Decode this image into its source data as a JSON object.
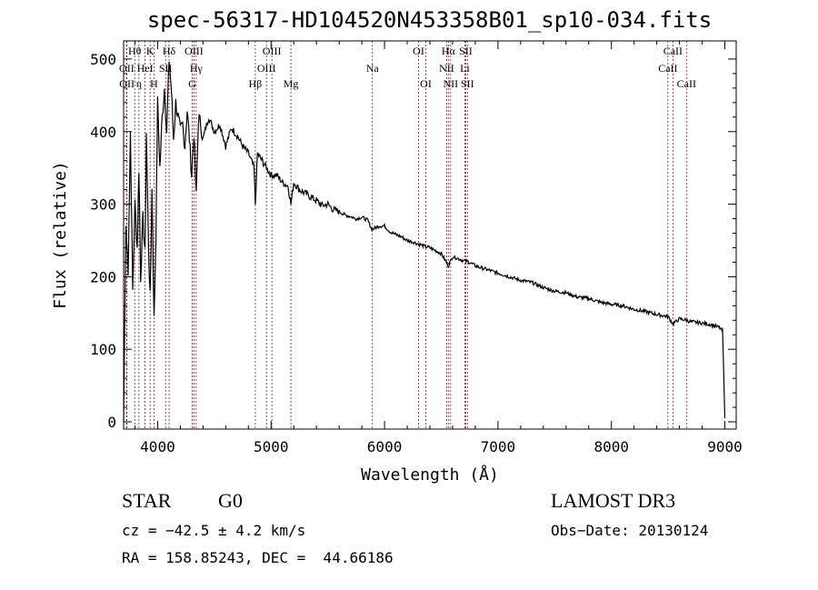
{
  "chart_data": {
    "type": "line",
    "title": "spec-56317-HD104520N453358B01_sp10-034.fits",
    "xlabel": "Wavelength (Å)",
    "ylabel": "Flux (relative)",
    "xlim": [
      3700,
      9100
    ],
    "ylim": [
      -10,
      525
    ],
    "xticks": [
      4000,
      5000,
      6000,
      7000,
      8000,
      9000
    ],
    "yticks": [
      0,
      100,
      200,
      300,
      400,
      500
    ],
    "series": [
      {
        "name": "flux",
        "x": [
          3700,
          3720,
          3740,
          3760,
          3780,
          3800,
          3820,
          3835,
          3850,
          3870,
          3889,
          3900,
          3920,
          3934,
          3950,
          3968,
          3985,
          4000,
          4020,
          4040,
          4060,
          4080,
          4101,
          4120,
          4140,
          4160,
          4180,
          4200,
          4220,
          4240,
          4260,
          4280,
          4300,
          4320,
          4340,
          4360,
          4380,
          4400,
          4450,
          4500,
          4550,
          4600,
          4650,
          4700,
          4750,
          4800,
          4850,
          4861,
          4880,
          4920,
          4960,
          5000,
          5050,
          5100,
          5150,
          5175,
          5200,
          5250,
          5300,
          5350,
          5400,
          5450,
          5500,
          5550,
          5600,
          5650,
          5700,
          5750,
          5800,
          5850,
          5890,
          5950,
          6000,
          6050,
          6100,
          6150,
          6200,
          6250,
          6300,
          6350,
          6400,
          6450,
          6500,
          6563,
          6600,
          6650,
          6700,
          6750,
          6800,
          6900,
          7000,
          7100,
          7200,
          7300,
          7400,
          7500,
          7600,
          7700,
          7800,
          7900,
          8000,
          8100,
          8200,
          8300,
          8400,
          8500,
          8542,
          8600,
          8662,
          8700,
          8800,
          8850,
          8900,
          8950,
          8980,
          9000
        ],
        "values": [
          0,
          270,
          210,
          400,
          180,
          300,
          240,
          350,
          200,
          280,
          230,
          400,
          240,
          170,
          320,
          140,
          260,
          440,
          350,
          420,
          460,
          400,
          500,
          460,
          390,
          440,
          420,
          400,
          410,
          380,
          430,
          390,
          340,
          400,
          310,
          420,
          410,
          390,
          420,
          400,
          410,
          380,
          405,
          395,
          380,
          370,
          350,
          300,
          370,
          360,
          350,
          340,
          340,
          330,
          325,
          300,
          330,
          320,
          315,
          310,
          305,
          298,
          300,
          292,
          290,
          285,
          283,
          280,
          282,
          278,
          265,
          270,
          270,
          262,
          258,
          255,
          250,
          248,
          245,
          242,
          240,
          236,
          232,
          215,
          228,
          225,
          222,
          220,
          215,
          210,
          205,
          200,
          195,
          192,
          185,
          180,
          178,
          172,
          170,
          165,
          162,
          160,
          155,
          152,
          148,
          145,
          135,
          142,
          140,
          138,
          136,
          135,
          133,
          130,
          125,
          5
        ]
      }
    ],
    "lines": [
      {
        "label": "Hθ",
        "x": 3798,
        "row": 0
      },
      {
        "label": "OII",
        "x": 3727,
        "row": 1
      },
      {
        "label": "OII",
        "x": 3729,
        "row": 2
      },
      {
        "label": "η",
        "x": 3835,
        "row": 2
      },
      {
        "label": "HeI",
        "x": 3889,
        "row": 1
      },
      {
        "label": "K",
        "x": 3934,
        "row": 0
      },
      {
        "label": "H",
        "x": 3968,
        "row": 2
      },
      {
        "label": "SII",
        "x": 4070,
        "row": 1
      },
      {
        "label": "Hδ",
        "x": 4101,
        "row": 0
      },
      {
        "label": "OIII",
        "x": 4320,
        "row": 0
      },
      {
        "label": "Hγ",
        "x": 4340,
        "row": 1
      },
      {
        "label": "G",
        "x": 4305,
        "row": 2
      },
      {
        "label": "Hβ",
        "x": 4861,
        "row": 2
      },
      {
        "label": "OIII",
        "x": 5007,
        "row": 0
      },
      {
        "label": "OIII",
        "x": 4959,
        "row": 1
      },
      {
        "label": "Mg",
        "x": 5175,
        "row": 2
      },
      {
        "label": "Na",
        "x": 5893,
        "row": 1
      },
      {
        "label": "OI",
        "x": 6300,
        "row": 0
      },
      {
        "label": "OI",
        "x": 6364,
        "row": 2
      },
      {
        "label": "Hα",
        "x": 6563,
        "row": 0
      },
      {
        "label": "NII",
        "x": 6548,
        "row": 1
      },
      {
        "label": "NII",
        "x": 6583,
        "row": 2
      },
      {
        "label": "SII",
        "x": 6716,
        "row": 0
      },
      {
        "label": "Li",
        "x": 6708,
        "row": 1
      },
      {
        "label": "SII",
        "x": 6731,
        "row": 2
      },
      {
        "label": "CaII",
        "x": 8542,
        "row": 0
      },
      {
        "label": "CaII",
        "x": 8498,
        "row": 1
      },
      {
        "label": "CaII",
        "x": 8662,
        "row": 2
      }
    ]
  },
  "info": {
    "object_type": "STAR",
    "subclass": "G0",
    "survey": "LAMOST DR3",
    "cz": "cz = −42.5 ± 4.2 km/s",
    "obs_date": "Obs−Date: 20130124",
    "coords": "RA = 158.85243, DEC =  44.66186"
  },
  "colors": {
    "spectrum": "#000000",
    "line_markers": "#8b1a1a",
    "axes": "#000000"
  }
}
